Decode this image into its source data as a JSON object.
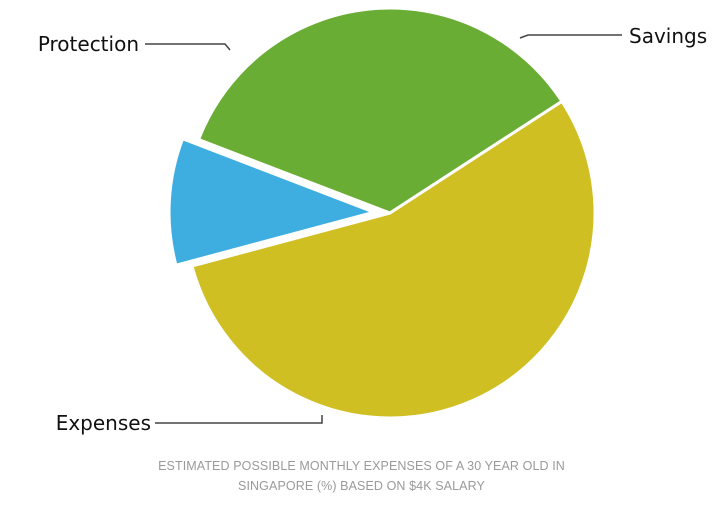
{
  "chart_data": {
    "type": "pie",
    "slices": [
      {
        "label": "Savings",
        "value": 35,
        "color": "#69ad35"
      },
      {
        "label": "Expenses",
        "value": 55,
        "color": "#d0bf23"
      },
      {
        "label": "Protection",
        "value": 10,
        "color": "#3eaee0"
      }
    ],
    "exploded": [
      "Protection"
    ],
    "caption_lines": [
      "ESTIMATED POSSIBLE MONTHLY EXPENSES OF A 30 YEAR OLD IN",
      "SINGAPORE (%) BASED ON $4K SALARY"
    ]
  }
}
